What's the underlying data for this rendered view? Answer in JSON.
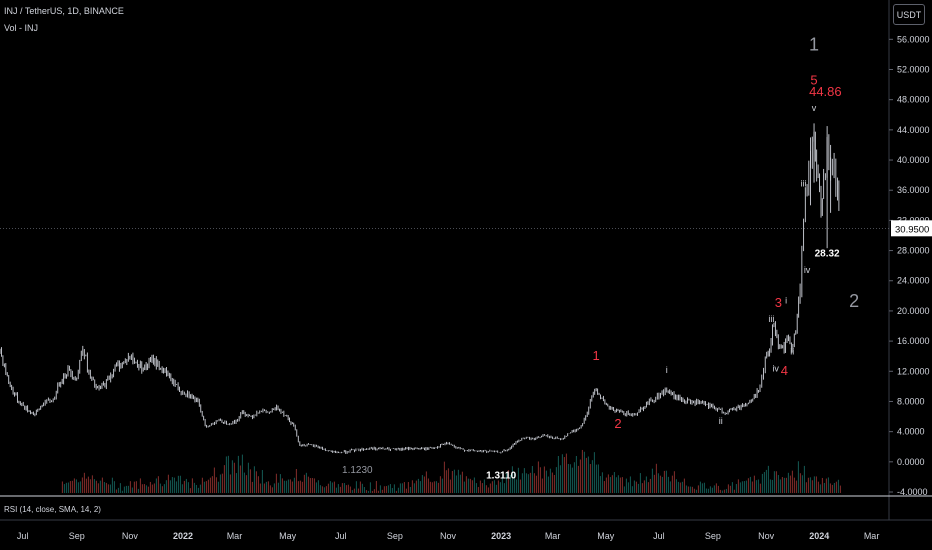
{
  "header": {
    "symbol_line": "INJ / TetherUS, 1D, BINANCE",
    "volume_line": "Vol - INJ",
    "currency_button": "USDT"
  },
  "rsi_label": "RSI (14, close, SMA, 14, 2)",
  "chart_data": {
    "type": "candlestick",
    "title": "",
    "price_axis": {
      "ticks": [
        "56.0000",
        "52.0000",
        "48.0000",
        "44.0000",
        "40.0000",
        "36.0000",
        "32.0000",
        "28.0000",
        "24.0000",
        "20.0000",
        "16.0000",
        "12.0000",
        "8.0000",
        "4.0000",
        "0.0000",
        "-4.0000"
      ],
      "ylim": [
        -4,
        57.5
      ],
      "current_price": "30.9500",
      "current_price_value": 30.95
    },
    "time_axis": {
      "ticks": [
        {
          "label": "Jul",
          "t": "2021-07-01",
          "bold": false
        },
        {
          "label": "Sep",
          "t": "2021-09-01",
          "bold": false
        },
        {
          "label": "Nov",
          "t": "2021-11-01",
          "bold": false
        },
        {
          "label": "2022",
          "t": "2022-01-01",
          "bold": true
        },
        {
          "label": "Mar",
          "t": "2022-03-01",
          "bold": false
        },
        {
          "label": "May",
          "t": "2022-05-01",
          "bold": false
        },
        {
          "label": "Jul",
          "t": "2022-07-01",
          "bold": false
        },
        {
          "label": "Sep",
          "t": "2022-09-01",
          "bold": false
        },
        {
          "label": "Nov",
          "t": "2022-11-01",
          "bold": false
        },
        {
          "label": "2023",
          "t": "2023-01-01",
          "bold": true
        },
        {
          "label": "Mar",
          "t": "2023-03-01",
          "bold": false
        },
        {
          "label": "May",
          "t": "2023-05-01",
          "bold": false
        },
        {
          "label": "Jul",
          "t": "2023-07-01",
          "bold": false
        },
        {
          "label": "Sep",
          "t": "2023-09-01",
          "bold": false
        },
        {
          "label": "Nov",
          "t": "2023-11-01",
          "bold": false
        },
        {
          "label": "2024",
          "t": "2024-01-01",
          "bold": true
        },
        {
          "label": "Mar",
          "t": "2024-03-01",
          "bold": false
        }
      ],
      "range": [
        "2021-06-05",
        "2024-03-21"
      ]
    },
    "price_series": [
      {
        "t": "2021-06-05",
        "v": 14.8
      },
      {
        "t": "2021-06-15",
        "v": 10.5
      },
      {
        "t": "2021-06-25",
        "v": 8.2
      },
      {
        "t": "2021-07-05",
        "v": 7.0
      },
      {
        "t": "2021-07-15",
        "v": 6.3
      },
      {
        "t": "2021-07-25",
        "v": 7.8
      },
      {
        "t": "2021-08-05",
        "v": 8.2
      },
      {
        "t": "2021-08-12",
        "v": 10.5
      },
      {
        "t": "2021-08-22",
        "v": 12.2
      },
      {
        "t": "2021-09-01",
        "v": 11.0
      },
      {
        "t": "2021-09-08",
        "v": 15.5
      },
      {
        "t": "2021-09-15",
        "v": 11.5
      },
      {
        "t": "2021-09-25",
        "v": 9.5
      },
      {
        "t": "2021-10-05",
        "v": 10.5
      },
      {
        "t": "2021-10-15",
        "v": 12.5
      },
      {
        "t": "2021-10-25",
        "v": 13.2
      },
      {
        "t": "2021-11-01",
        "v": 14.0
      },
      {
        "t": "2021-11-08",
        "v": 13.0
      },
      {
        "t": "2021-11-18",
        "v": 12.5
      },
      {
        "t": "2021-11-28",
        "v": 13.5
      },
      {
        "t": "2021-12-08",
        "v": 12.2
      },
      {
        "t": "2021-12-18",
        "v": 11.0
      },
      {
        "t": "2021-12-28",
        "v": 9.5
      },
      {
        "t": "2022-01-08",
        "v": 9.0
      },
      {
        "t": "2022-01-18",
        "v": 7.8
      },
      {
        "t": "2022-01-28",
        "v": 4.5
      },
      {
        "t": "2022-02-08",
        "v": 5.5
      },
      {
        "t": "2022-02-18",
        "v": 5.2
      },
      {
        "t": "2022-03-01",
        "v": 5.2
      },
      {
        "t": "2022-03-10",
        "v": 6.5
      },
      {
        "t": "2022-03-20",
        "v": 6.0
      },
      {
        "t": "2022-03-30",
        "v": 6.8
      },
      {
        "t": "2022-04-10",
        "v": 6.5
      },
      {
        "t": "2022-04-20",
        "v": 7.2
      },
      {
        "t": "2022-04-30",
        "v": 6.0
      },
      {
        "t": "2022-05-08",
        "v": 4.8
      },
      {
        "t": "2022-05-15",
        "v": 2.2
      },
      {
        "t": "2022-05-25",
        "v": 2.2
      },
      {
        "t": "2022-06-05",
        "v": 2.0
      },
      {
        "t": "2022-06-15",
        "v": 1.5
      },
      {
        "t": "2022-06-25",
        "v": 1.2
      },
      {
        "t": "2022-07-05",
        "v": 1.3
      },
      {
        "t": "2022-07-20",
        "v": 1.6
      },
      {
        "t": "2022-08-05",
        "v": 1.8
      },
      {
        "t": "2022-08-20",
        "v": 1.7
      },
      {
        "t": "2022-09-05",
        "v": 1.6
      },
      {
        "t": "2022-09-20",
        "v": 1.8
      },
      {
        "t": "2022-10-05",
        "v": 1.7
      },
      {
        "t": "2022-10-20",
        "v": 2.0
      },
      {
        "t": "2022-11-01",
        "v": 2.5
      },
      {
        "t": "2022-11-10",
        "v": 1.8
      },
      {
        "t": "2022-11-25",
        "v": 1.5
      },
      {
        "t": "2022-12-10",
        "v": 1.4
      },
      {
        "t": "2022-12-28",
        "v": 1.3
      },
      {
        "t": "2023-01-08",
        "v": 1.5
      },
      {
        "t": "2023-01-18",
        "v": 2.6
      },
      {
        "t": "2023-01-28",
        "v": 3.2
      },
      {
        "t": "2023-02-08",
        "v": 3.0
      },
      {
        "t": "2023-02-18",
        "v": 3.5
      },
      {
        "t": "2023-03-01",
        "v": 3.2
      },
      {
        "t": "2023-03-10",
        "v": 3.0
      },
      {
        "t": "2023-03-20",
        "v": 3.8
      },
      {
        "t": "2023-04-01",
        "v": 4.5
      },
      {
        "t": "2023-04-08",
        "v": 6.0
      },
      {
        "t": "2023-04-15",
        "v": 8.5
      },
      {
        "t": "2023-04-20",
        "v": 9.8
      },
      {
        "t": "2023-04-30",
        "v": 7.5
      },
      {
        "t": "2023-05-10",
        "v": 6.8
      },
      {
        "t": "2023-05-20",
        "v": 6.5
      },
      {
        "t": "2023-06-01",
        "v": 6.2
      },
      {
        "t": "2023-06-10",
        "v": 7.0
      },
      {
        "t": "2023-06-20",
        "v": 8.0
      },
      {
        "t": "2023-07-01",
        "v": 8.8
      },
      {
        "t": "2023-07-10",
        "v": 9.5
      },
      {
        "t": "2023-07-20",
        "v": 8.5
      },
      {
        "t": "2023-08-01",
        "v": 8.0
      },
      {
        "t": "2023-08-15",
        "v": 7.8
      },
      {
        "t": "2023-09-01",
        "v": 7.2
      },
      {
        "t": "2023-09-15",
        "v": 6.5
      },
      {
        "t": "2023-09-25",
        "v": 7.0
      },
      {
        "t": "2023-10-05",
        "v": 7.5
      },
      {
        "t": "2023-10-15",
        "v": 8.0
      },
      {
        "t": "2023-10-25",
        "v": 10.0
      },
      {
        "t": "2023-10-31",
        "v": 13.5
      },
      {
        "t": "2023-11-05",
        "v": 15.0
      },
      {
        "t": "2023-11-10",
        "v": 18.5
      },
      {
        "t": "2023-11-15",
        "v": 16.0
      },
      {
        "t": "2023-11-20",
        "v": 15.0
      },
      {
        "t": "2023-11-25",
        "v": 16.0
      },
      {
        "t": "2023-11-30",
        "v": 15.5
      },
      {
        "t": "2023-12-05",
        "v": 17.5
      },
      {
        "t": "2023-12-10",
        "v": 23.0
      },
      {
        "t": "2023-12-14",
        "v": 32.0
      },
      {
        "t": "2023-12-18",
        "v": 37.0
      },
      {
        "t": "2023-12-22",
        "v": 40.0
      },
      {
        "t": "2023-12-26",
        "v": 44.0
      },
      {
        "t": "2023-12-29",
        "v": 38.0
      },
      {
        "t": "2024-01-03",
        "v": 34.0
      },
      {
        "t": "2024-01-06",
        "v": 38.0
      },
      {
        "t": "2024-01-10",
        "v": 41.0
      },
      {
        "t": "2024-01-14",
        "v": 37.0
      },
      {
        "t": "2024-01-18",
        "v": 39.0
      },
      {
        "t": "2024-01-22",
        "v": 35.0
      },
      {
        "t": "2024-01-25",
        "v": 31.0
      }
    ],
    "annotations": [
      {
        "text": "1",
        "t": "2023-12-26",
        "y": 54.5,
        "color": "#9598a1",
        "size": 18
      },
      {
        "text": "5",
        "t": "2023-12-26",
        "y": 50.0,
        "color": "#f23645",
        "size": 13
      },
      {
        "text": "44.86",
        "t": "2024-01-08",
        "y": 48.5,
        "color": "#f23645",
        "size": 13
      },
      {
        "text": "v",
        "t": "2023-12-26",
        "y": 46.5,
        "color": "#d1d4dc",
        "size": 9
      },
      {
        "text": "iii",
        "t": "2023-12-14",
        "y": 36.5,
        "color": "#d1d4dc",
        "size": 9
      },
      {
        "text": "28.32",
        "t": "2024-01-10",
        "y": 27.2,
        "color": "#ffffff",
        "size": 10,
        "bold": true
      },
      {
        "text": "iv",
        "t": "2023-12-18",
        "y": 25.0,
        "color": "#d1d4dc",
        "size": 9
      },
      {
        "text": "2",
        "t": "2024-02-10",
        "y": 20.5,
        "color": "#9598a1",
        "size": 18
      },
      {
        "text": "3",
        "t": "2023-11-15",
        "y": 20.5,
        "color": "#f23645",
        "size": 13
      },
      {
        "text": "i",
        "t": "2023-11-24",
        "y": 21.0,
        "color": "#d1d4dc",
        "size": 9
      },
      {
        "text": "iii",
        "t": "2023-11-07",
        "y": 18.5,
        "color": "#d1d4dc",
        "size": 9
      },
      {
        "text": "ii",
        "t": "2023-12-01",
        "y": 14.2,
        "color": "#d1d4dc",
        "size": 9
      },
      {
        "text": "iv",
        "t": "2023-11-12",
        "y": 12.0,
        "color": "#d1d4dc",
        "size": 9
      },
      {
        "text": "4",
        "t": "2023-11-22",
        "y": 11.5,
        "color": "#f23645",
        "size": 13
      },
      {
        "text": "1",
        "t": "2023-04-20",
        "y": 13.5,
        "color": "#f23645",
        "size": 13
      },
      {
        "text": "i",
        "t": "2023-07-10",
        "y": 11.8,
        "color": "#d1d4dc",
        "size": 9
      },
      {
        "text": "2",
        "t": "2023-05-15",
        "y": 4.5,
        "color": "#f23645",
        "size": 13
      },
      {
        "text": "ii",
        "t": "2023-09-10",
        "y": 5.0,
        "color": "#d1d4dc",
        "size": 9
      },
      {
        "text": "1.1230",
        "t": "2022-07-20",
        "y": -1.5,
        "color": "#9598a1",
        "size": 10
      },
      {
        "text": "1.3110",
        "t": "2023-01-01",
        "y": -2.2,
        "color": "#ffffff",
        "size": 10,
        "bold": true
      }
    ],
    "volume_profile": [
      {
        "t": "2021-09-08",
        "h": 0.35
      },
      {
        "t": "2021-12-10",
        "h": 0.3
      },
      {
        "t": "2022-02-28",
        "h": 0.95
      },
      {
        "t": "2022-05-12",
        "h": 0.45
      },
      {
        "t": "2022-10-28",
        "h": 0.55
      },
      {
        "t": "2023-01-20",
        "h": 0.55
      },
      {
        "t": "2023-03-15",
        "h": 0.9
      },
      {
        "t": "2023-04-15",
        "h": 0.7
      },
      {
        "t": "2023-07-01",
        "h": 0.5
      },
      {
        "t": "2023-11-05",
        "h": 0.45
      },
      {
        "t": "2023-12-14",
        "h": 0.45
      }
    ],
    "colors": {
      "up": "#26a69a",
      "down": "#ef5350",
      "line": "#d1d4dc",
      "price_label_bg": "#ffffff",
      "price_label_text": "#000000"
    }
  }
}
